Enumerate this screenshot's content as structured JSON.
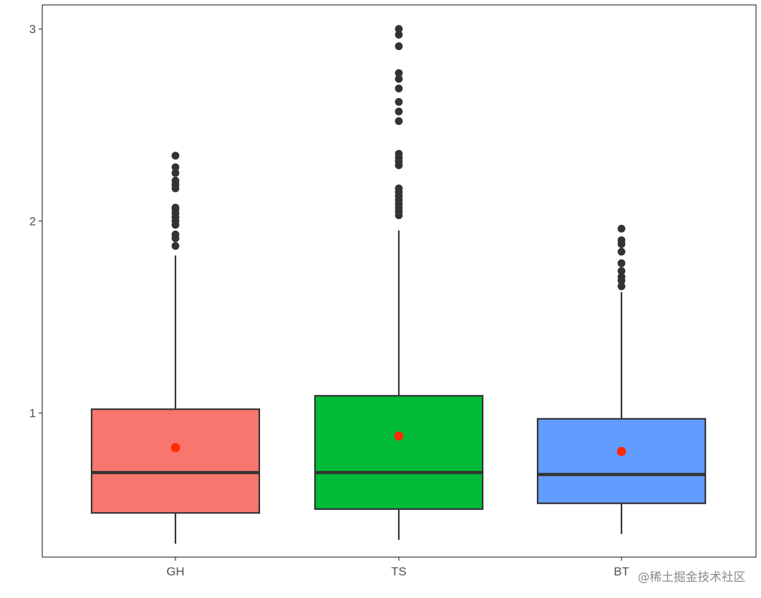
{
  "chart_data": {
    "type": "boxplot",
    "title": "",
    "xlabel": "",
    "ylabel": "",
    "ylim": [
      0.25,
      3.125
    ],
    "yticks": [
      1,
      2,
      3
    ],
    "grid": false,
    "categories": [
      "GH",
      "TS",
      "BT"
    ],
    "boxes": [
      {
        "category": "GH",
        "color": "#F8766D",
        "whisker_low": 0.32,
        "q1": 0.48,
        "median": 0.69,
        "q3": 1.02,
        "whisker_high": 1.82,
        "mean": 0.82,
        "outliers": [
          1.87,
          1.91,
          1.93,
          1.98,
          2.0,
          2.02,
          2.04,
          2.06,
          2.07,
          2.17,
          2.19,
          2.21,
          2.25,
          2.28,
          2.34
        ]
      },
      {
        "category": "TS",
        "color": "#00BA38",
        "whisker_low": 0.34,
        "q1": 0.5,
        "median": 0.69,
        "q3": 1.09,
        "whisker_high": 1.95,
        "mean": 0.88,
        "outliers": [
          2.03,
          2.05,
          2.07,
          2.09,
          2.11,
          2.13,
          2.15,
          2.17,
          2.29,
          2.31,
          2.33,
          2.35,
          2.52,
          2.57,
          2.62,
          2.69,
          2.74,
          2.77,
          2.91,
          2.97,
          3.0
        ]
      },
      {
        "category": "BT",
        "color": "#619CFF",
        "whisker_low": 0.37,
        "q1": 0.53,
        "median": 0.68,
        "q3": 0.97,
        "whisker_high": 1.63,
        "mean": 0.8,
        "outliers": [
          1.66,
          1.69,
          1.71,
          1.74,
          1.78,
          1.84,
          1.88,
          1.9,
          1.96
        ]
      }
    ],
    "mean_marker_color": "#FF2A00",
    "outlier_color": "#333333"
  },
  "watermark": "@稀土掘金技术社区"
}
